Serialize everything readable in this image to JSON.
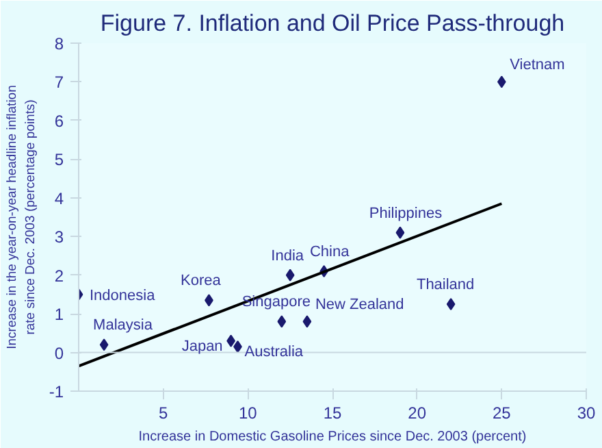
{
  "chart_data": {
    "type": "scatter",
    "title": "Figure 7. Inflation and Oil Price Pass-through",
    "xlabel": "Increase in Domestic Gasoline Prices since Dec. 2003 (percent)",
    "ylabel": "Increase in the year-on-year headline inflation rate since Dec. 2003 (percentage points)",
    "xlim": [
      0,
      30
    ],
    "ylim": [
      -1,
      8
    ],
    "xticks": [
      5,
      10,
      15,
      20,
      25,
      30
    ],
    "yticks": [
      -1,
      0,
      1,
      2,
      3,
      4,
      5,
      6,
      7,
      8
    ],
    "grid": false,
    "ref_lines": [
      {
        "axis": "y",
        "value": 0,
        "label": null,
        "color": "#c8d8e0"
      }
    ],
    "series": [
      {
        "marker": "diamond",
        "color": "#1a1a6e",
        "x": [
          0,
          1.5,
          7.7,
          9.0,
          9.4,
          12.5,
          12.0,
          13.5,
          14.5,
          19.0,
          22.0,
          25.0
        ],
        "values": [
          1.5,
          0.2,
          1.35,
          0.3,
          0.15,
          2.0,
          0.8,
          0.8,
          2.1,
          3.1,
          1.25,
          7.0
        ]
      },
      {
        "type": "line",
        "color": "#000000",
        "x": [
          0,
          25
        ],
        "values": [
          -0.35,
          3.85
        ]
      }
    ],
    "annotations": [
      {
        "text": "Indonesia",
        "x": 0,
        "y": 1.5
      },
      {
        "text": "Malaysia",
        "x": 1.5,
        "y": 0.2
      },
      {
        "text": "Korea",
        "x": 7.7,
        "y": 1.35
      },
      {
        "text": "Japan",
        "x": 9.0,
        "y": 0.3
      },
      {
        "text": "Australia",
        "x": 9.4,
        "y": 0.15
      },
      {
        "text": "India",
        "x": 12.5,
        "y": 2.0
      },
      {
        "text": "Singapore",
        "x": 12.0,
        "y": 0.8
      },
      {
        "text": "New Zealand",
        "x": 13.5,
        "y": 0.8
      },
      {
        "text": "China",
        "x": 14.5,
        "y": 2.1
      },
      {
        "text": "Philippines",
        "x": 19.0,
        "y": 3.1
      },
      {
        "text": "Thailand",
        "x": 22.0,
        "y": 1.25
      },
      {
        "text": "Vietnam",
        "x": 25.0,
        "y": 7.0
      }
    ]
  }
}
